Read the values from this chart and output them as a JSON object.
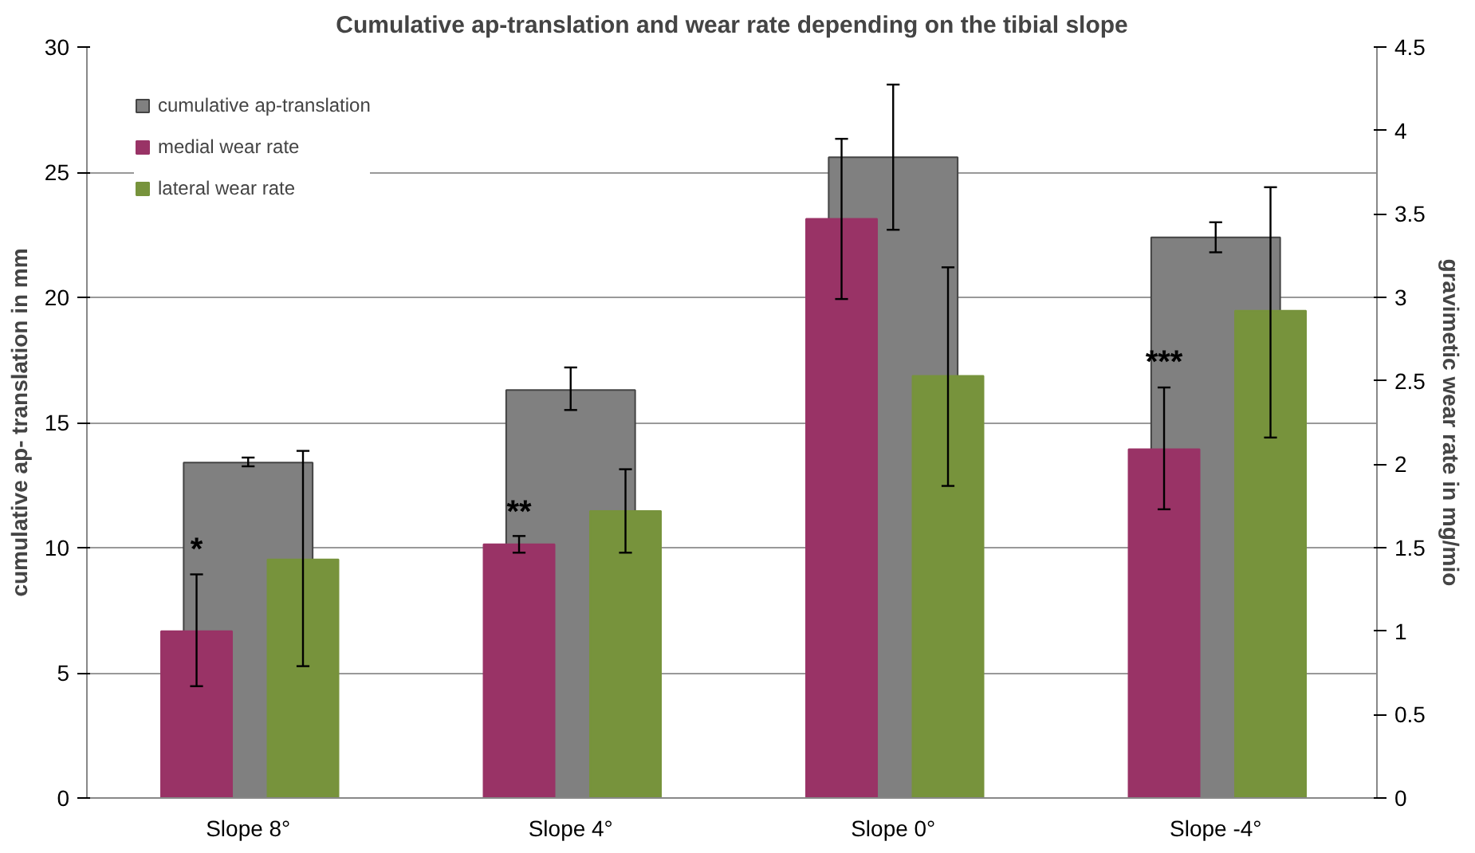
{
  "chart_data": {
    "type": "bar",
    "title": "Cumulative ap-translation and wear rate depending on the tibial slope",
    "ylabel": "cumulative ap- translation in mm",
    "y2label": "gravimetic wear rate in mg/mio",
    "categories": [
      "Slope 8°",
      "Slope 4°",
      "Slope 0°",
      "Slope -4°"
    ],
    "series": [
      {
        "name": "cumulative ap-translation",
        "color": "#808080",
        "values": [
          13.4,
          16.3,
          25.6,
          22.4
        ],
        "errors": [
          [
            13.25,
            13.6
          ],
          [
            15.5,
            17.2
          ],
          [
            22.7,
            28.5
          ],
          [
            21.8,
            23.0
          ]
        ]
      },
      {
        "name": "medial wear rate",
        "color": "#993366",
        "axis": "y2",
        "values": [
          1.0,
          1.52,
          3.47,
          2.09
        ],
        "errors": [
          [
            0.67,
            1.34
          ],
          [
            1.47,
            1.57
          ],
          [
            2.99,
            3.95
          ],
          [
            1.73,
            2.46
          ]
        ]
      },
      {
        "name": "lateral wear rate",
        "color": "#77933c",
        "axis": "y2",
        "values": [
          1.43,
          1.72,
          2.53,
          2.92
        ],
        "errors": [
          [
            0.79,
            2.08
          ],
          [
            1.47,
            1.97
          ],
          [
            1.87,
            3.18
          ],
          [
            2.16,
            3.66
          ]
        ]
      }
    ],
    "ylim": [
      0,
      30
    ],
    "yticks": [
      0,
      5,
      10,
      15,
      20,
      25,
      30
    ],
    "y2lim": [
      0,
      4.5
    ],
    "y2ticks": [
      0,
      {
        "value": 0.5,
        "label": "0.5"
      },
      1,
      {
        "value": 1.5,
        "label": "1.5"
      },
      2,
      {
        "value": 2.5,
        "label": "2.5"
      },
      3,
      {
        "value": 3.5,
        "label": "3.5"
      },
      4,
      {
        "value": 4.5,
        "label": "4.5"
      }
    ],
    "grid": "y",
    "legend": "top left",
    "annotations": [
      "*",
      "**",
      "***"
    ]
  }
}
